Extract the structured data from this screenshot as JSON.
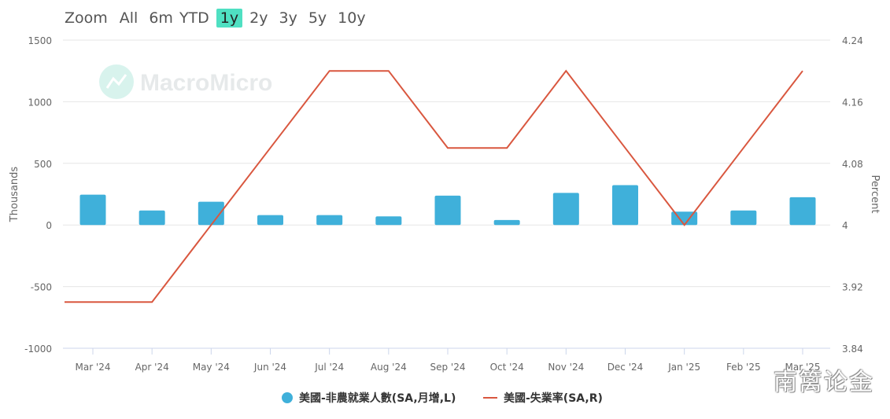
{
  "zoom": {
    "label": "Zoom",
    "buttons": [
      "All",
      "6m",
      "YTD",
      "1y",
      "2y",
      "3y",
      "5y",
      "10y"
    ],
    "active": "1y"
  },
  "watermark": {
    "logo_text": "MacroMicro",
    "corner_text": "南篱论金"
  },
  "colors": {
    "bars": "#3fb0da",
    "line": "#d9573f",
    "zoom_active": "#4fe0c2"
  },
  "chart_data": {
    "type": "bar",
    "categories": [
      "Mar '24",
      "Apr '24",
      "May '24",
      "Jun '24",
      "Jul '24",
      "Aug '24",
      "Sep '24",
      "Oct '24",
      "Nov '24",
      "Dec '24",
      "Jan '25",
      "Feb '25",
      "Mar '25"
    ],
    "series": [
      {
        "name": "美國-非農就業人數(SA,月增,L)",
        "type": "bar",
        "axis": "left",
        "values": [
          246,
          118,
          189,
          80,
          80,
          70,
          238,
          40,
          260,
          323,
          108,
          118,
          225
        ]
      },
      {
        "name": "美國-失業率(SA,R)",
        "type": "line",
        "axis": "right",
        "values": [
          3.9,
          3.9,
          4.0,
          4.1,
          4.2,
          4.2,
          4.1,
          4.1,
          4.2,
          4.1,
          4.0,
          4.1,
          4.2
        ]
      }
    ],
    "ylabel_left": "Thousands",
    "ylabel_right": "Percent",
    "ylim_left": [
      -1000,
      1500
    ],
    "ylim_right": [
      3.84,
      4.24
    ],
    "yticks_left": [
      "1500",
      "1000",
      "500",
      "0",
      "-500",
      "-1000"
    ],
    "yticks_right": [
      "4.24",
      "4.16",
      "4.08",
      "4",
      "3.92",
      "3.84"
    ],
    "grid": true,
    "legend": "bottom-center"
  }
}
